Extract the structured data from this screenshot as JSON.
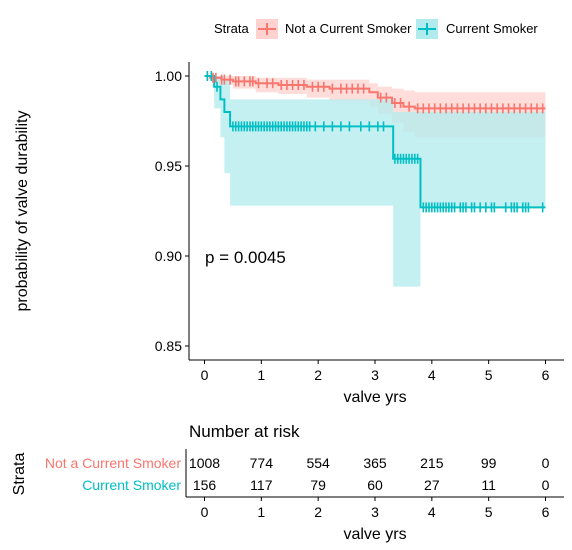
{
  "legend": {
    "title": "Strata",
    "items": [
      {
        "label": "Not a Current Smoker",
        "color": "#F8766D",
        "fill": "#FFD2CF"
      },
      {
        "label": "Current Smoker",
        "color": "#00BFC4",
        "fill": "#B2EBED"
      }
    ]
  },
  "plot": {
    "ylabel": "probability of valve durability",
    "xlabel": "valve yrs",
    "pvalue": "p = 0.0045"
  },
  "risk_table": {
    "title": "Number at risk",
    "ylabel": "Strata",
    "xlabel": "valve yrs",
    "times": [
      0,
      1,
      2,
      3,
      4,
      5,
      6
    ],
    "rows": [
      {
        "label": "Not a Current Smoker",
        "color": "#F8766D",
        "counts": [
          "1008",
          "774",
          "554",
          "365",
          "215",
          "99",
          "0"
        ]
      },
      {
        "label": "Current Smoker",
        "color": "#00BFC4",
        "counts": [
          "156",
          "117",
          "79",
          "60",
          "27",
          "11",
          "0"
        ]
      }
    ]
  },
  "chart_data": {
    "type": "line",
    "title": "",
    "xlabel": "valve yrs",
    "ylabel": "probability of valve durability",
    "xlim": [
      -0.25,
      6.3
    ],
    "ylim": [
      0.84,
      1.005
    ],
    "x_ticks": [
      0,
      1,
      2,
      3,
      4,
      5,
      6
    ],
    "y_ticks": [
      0.85,
      0.9,
      0.95,
      1.0
    ],
    "y_tick_labels": [
      "0.85",
      "0.90",
      "0.95",
      "1.00"
    ],
    "grid": false,
    "legend_position": "top",
    "annotations": [
      "p = 0.0045"
    ],
    "series": [
      {
        "name": "Not a Current Smoker",
        "color": "#F8766D",
        "band_color": "#FFD2CF",
        "steps": [
          [
            0,
            1.0
          ],
          [
            0.1,
            0.999
          ],
          [
            0.3,
            0.998
          ],
          [
            0.5,
            0.997
          ],
          [
            0.9,
            0.996
          ],
          [
            1.3,
            0.995
          ],
          [
            1.8,
            0.994
          ],
          [
            2.2,
            0.993
          ],
          [
            2.9,
            0.991
          ],
          [
            3.05,
            0.988
          ],
          [
            3.3,
            0.985
          ],
          [
            3.5,
            0.983
          ],
          [
            3.7,
            0.982
          ],
          [
            6.0,
            0.982
          ]
        ],
        "lower": [
          [
            0,
            1.0
          ],
          [
            0.1,
            0.997
          ],
          [
            0.3,
            0.995
          ],
          [
            0.5,
            0.993
          ],
          [
            0.9,
            0.991
          ],
          [
            1.3,
            0.99
          ],
          [
            1.8,
            0.988
          ],
          [
            2.2,
            0.986
          ],
          [
            2.9,
            0.983
          ],
          [
            3.05,
            0.979
          ],
          [
            3.3,
            0.974
          ],
          [
            3.5,
            0.969
          ],
          [
            3.7,
            0.966
          ],
          [
            6.0,
            0.966
          ]
        ],
        "upper": [
          [
            0,
            1.0
          ],
          [
            0.1,
            1.0
          ],
          [
            0.3,
            1.0
          ],
          [
            0.5,
            1.0
          ],
          [
            0.9,
            0.999
          ],
          [
            1.3,
            0.999
          ],
          [
            1.8,
            0.998
          ],
          [
            2.2,
            0.998
          ],
          [
            2.9,
            0.996
          ],
          [
            3.05,
            0.994
          ],
          [
            3.3,
            0.993
          ],
          [
            3.5,
            0.992
          ],
          [
            3.7,
            0.991
          ],
          [
            6.0,
            0.991
          ]
        ],
        "censor_x": [
          0.05,
          0.15,
          0.2,
          0.3,
          0.35,
          0.45,
          0.55,
          0.6,
          0.7,
          0.8,
          0.85,
          0.95,
          1.1,
          1.2,
          1.35,
          1.45,
          1.55,
          1.65,
          1.75,
          1.9,
          2.0,
          2.1,
          2.25,
          2.4,
          2.5,
          2.6,
          2.7,
          2.8,
          3.1,
          3.2,
          3.35,
          3.45,
          3.6,
          3.75,
          3.85,
          3.95,
          4.05,
          4.15,
          4.25,
          4.35,
          4.45,
          4.55,
          4.65,
          4.75,
          4.85,
          4.95,
          5.05,
          5.15,
          5.25,
          5.35,
          5.45,
          5.55,
          5.65,
          5.75,
          5.85,
          5.95
        ]
      },
      {
        "name": "Current Smoker",
        "color": "#00BFC4",
        "band_color": "#B2EBED",
        "steps": [
          [
            0,
            1.0
          ],
          [
            0.17,
            0.994
          ],
          [
            0.28,
            0.987
          ],
          [
            0.35,
            0.98
          ],
          [
            0.45,
            0.972
          ],
          [
            3.32,
            0.954
          ],
          [
            3.8,
            0.927
          ],
          [
            6.0,
            0.927
          ]
        ],
        "lower": [
          [
            0,
            1.0
          ],
          [
            0.17,
            0.982
          ],
          [
            0.28,
            0.966
          ],
          [
            0.35,
            0.946
          ],
          [
            0.45,
            0.928
          ],
          [
            3.32,
            0.883
          ],
          [
            3.8,
            0.927
          ],
          [
            6.0,
            0.927
          ]
        ],
        "upper": [
          [
            0,
            1.0
          ],
          [
            0.17,
            1.0
          ],
          [
            0.28,
            1.0
          ],
          [
            0.35,
            0.998
          ],
          [
            0.45,
            0.987
          ],
          [
            3.32,
            0.98
          ],
          [
            3.8,
            0.98
          ],
          [
            6.0,
            0.927
          ]
        ],
        "censor_x": [
          0.05,
          0.12,
          0.22,
          0.5,
          0.55,
          0.6,
          0.65,
          0.7,
          0.75,
          0.8,
          0.85,
          0.9,
          0.95,
          1.0,
          1.05,
          1.1,
          1.15,
          1.2,
          1.25,
          1.3,
          1.35,
          1.4,
          1.45,
          1.5,
          1.55,
          1.6,
          1.65,
          1.7,
          1.75,
          1.8,
          1.85,
          1.95,
          2.1,
          2.25,
          2.4,
          2.55,
          2.75,
          2.9,
          3.05,
          3.15,
          3.35,
          3.4,
          3.45,
          3.5,
          3.55,
          3.6,
          3.65,
          3.7,
          3.75,
          3.85,
          3.9,
          3.95,
          4.0,
          4.05,
          4.1,
          4.15,
          4.2,
          4.25,
          4.3,
          4.35,
          4.4,
          4.5,
          4.55,
          4.6,
          4.7,
          4.75,
          4.85,
          4.95,
          5.05,
          5.1,
          5.3,
          5.4,
          5.45,
          5.5,
          5.6,
          5.65,
          5.7,
          5.95
        ]
      }
    ]
  }
}
